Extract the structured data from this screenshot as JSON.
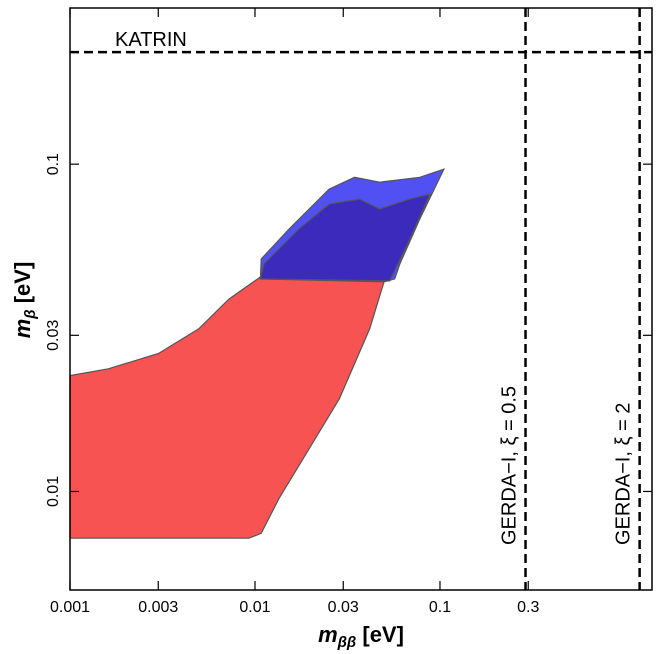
{
  "chart_data": {
    "type": "area",
    "xscale": "log",
    "yscale": "log",
    "xlim": [
      0.001,
      1.4
    ],
    "ylim": [
      0.005,
      0.3
    ],
    "xticks": [
      0.001,
      0.003,
      0.01,
      0.03,
      0.1,
      0.3
    ],
    "yticks": [
      0.01,
      0.03,
      0.1
    ],
    "xlabel": {
      "symbol": "m",
      "sub": "ββ",
      "unit": " [eV]"
    },
    "ylabel": {
      "symbol": "m",
      "sub": "β",
      "unit": " [eV]"
    },
    "series": [
      {
        "color": "#f74a4a",
        "x": [
          0.001,
          0.00161,
          0.00301,
          0.00497,
          0.00723,
          0.0107,
          0.05,
          0.0417,
          0.0286,
          0.0196,
          0.0135,
          0.0108,
          0.00927,
          0.001
        ],
        "values": [
          0.0226,
          0.0237,
          0.0264,
          0.0314,
          0.0387,
          0.0452,
          0.044,
          0.0314,
          0.0192,
          0.0135,
          0.00953,
          0.00745,
          0.0072,
          0.0072
        ]
      },
      {
        "color": "#4848f2",
        "x": [
          0.0107,
          0.0108,
          0.0153,
          0.0252,
          0.0345,
          0.0472,
          0.0778,
          0.105,
          0.0778,
          0.0607,
          0.0569,
          0.05,
          0.0107
        ],
        "values": [
          0.0446,
          0.0513,
          0.0634,
          0.0839,
          0.0912,
          0.0881,
          0.0912,
          0.0966,
          0.068,
          0.0496,
          0.0446,
          0.0437,
          0.0446
        ]
      },
      {
        "color": "#3a28b8",
        "x": [
          0.0107,
          0.0112,
          0.0173,
          0.0252,
          0.0367,
          0.0472,
          0.0687,
          0.0883,
          0.0687,
          0.0535,
          0.0107
        ],
        "values": [
          0.0446,
          0.0496,
          0.0634,
          0.0755,
          0.0782,
          0.0729,
          0.0782,
          0.081,
          0.059,
          0.044,
          0.0446
        ]
      }
    ],
    "hlines": [
      {
        "value": 0.22,
        "label": "KATRIN"
      }
    ],
    "vlines": [
      {
        "value": 0.29,
        "label": "GERDA−I, ξ = 0.5"
      },
      {
        "value": 1.2,
        "label": "GERDA−I, ξ = 2"
      }
    ]
  }
}
